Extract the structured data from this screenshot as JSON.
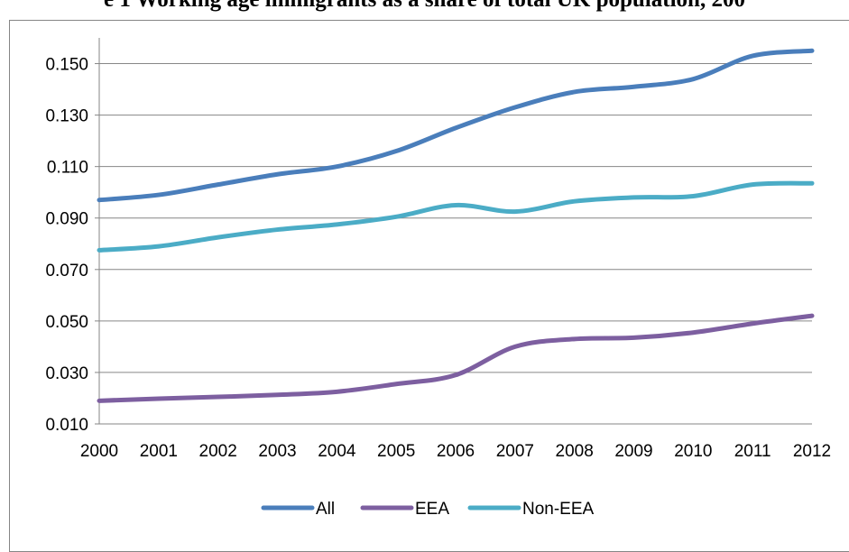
{
  "title": "e 1    Working age immigrants as a share of total UK population, 200",
  "chart_data": {
    "type": "line",
    "title": "e 1    Working age immigrants as a share of total UK population, 200",
    "xlabel": "",
    "ylabel": "",
    "x": [
      "2000",
      "2001",
      "2002",
      "2003",
      "2004",
      "2005",
      "2006",
      "2007",
      "2008",
      "2009",
      "2010",
      "2011",
      "2012"
    ],
    "y_ticks": [
      "0.010",
      "0.030",
      "0.050",
      "0.070",
      "0.090",
      "0.110",
      "0.130",
      "0.150"
    ],
    "ylim": [
      0.01,
      0.16
    ],
    "grid": true,
    "legend_position": "bottom",
    "series": [
      {
        "name": "All",
        "color": "#4a7ebb",
        "values": [
          0.097,
          0.099,
          0.103,
          0.107,
          0.11,
          0.116,
          0.125,
          0.133,
          0.139,
          0.141,
          0.144,
          0.153,
          0.155
        ]
      },
      {
        "name": "EEA",
        "color": "#7d5fa0",
        "values": [
          0.019,
          0.0198,
          0.0205,
          0.0213,
          0.0225,
          0.0255,
          0.029,
          0.04,
          0.043,
          0.0435,
          0.0455,
          0.049,
          0.052
        ]
      },
      {
        "name": "Non-EEA",
        "color": "#4bacc6",
        "values": [
          0.0775,
          0.079,
          0.0825,
          0.0855,
          0.0875,
          0.0905,
          0.095,
          0.0925,
          0.0965,
          0.098,
          0.0985,
          0.103,
          0.1035
        ]
      }
    ]
  }
}
